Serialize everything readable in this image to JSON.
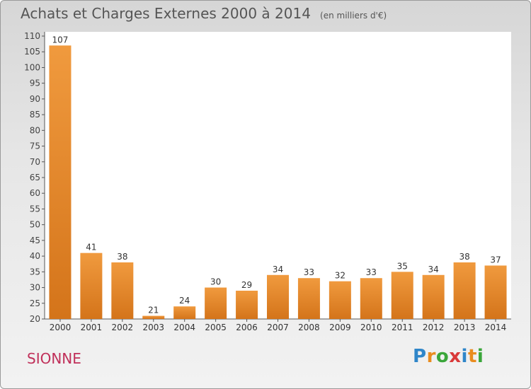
{
  "title": "Achats et Charges Externes 2000 à 2014",
  "subtitle": "(en milliers d'€)",
  "place_label": "SIONNE",
  "logo": {
    "letters": [
      "P",
      "r",
      "o",
      "x",
      "i",
      "t",
      "i"
    ],
    "colors": [
      "#2f86c9",
      "#e98c1e",
      "#3aa63a",
      "#d93a3a",
      "#2f86c9",
      "#e98c1e",
      "#3aa63a"
    ]
  },
  "colors": {
    "bar": "#f09a3e",
    "bar_dark": "#d4741a",
    "title": "#555555",
    "place": "#c0305a"
  },
  "chart_data": {
    "type": "bar",
    "categories": [
      "2000",
      "2001",
      "2002",
      "2003",
      "2004",
      "2005",
      "2006",
      "2007",
      "2008",
      "2009",
      "2010",
      "2011",
      "2012",
      "2013",
      "2014"
    ],
    "values": [
      107,
      41,
      38,
      21,
      24,
      30,
      29,
      34,
      33,
      32,
      33,
      35,
      34,
      38,
      37
    ],
    "ylim": [
      20,
      110
    ],
    "yticks": [
      20,
      25,
      30,
      35,
      40,
      45,
      50,
      55,
      60,
      65,
      70,
      75,
      80,
      85,
      90,
      95,
      100,
      105,
      110
    ],
    "grid": false,
    "data_labels": true
  }
}
